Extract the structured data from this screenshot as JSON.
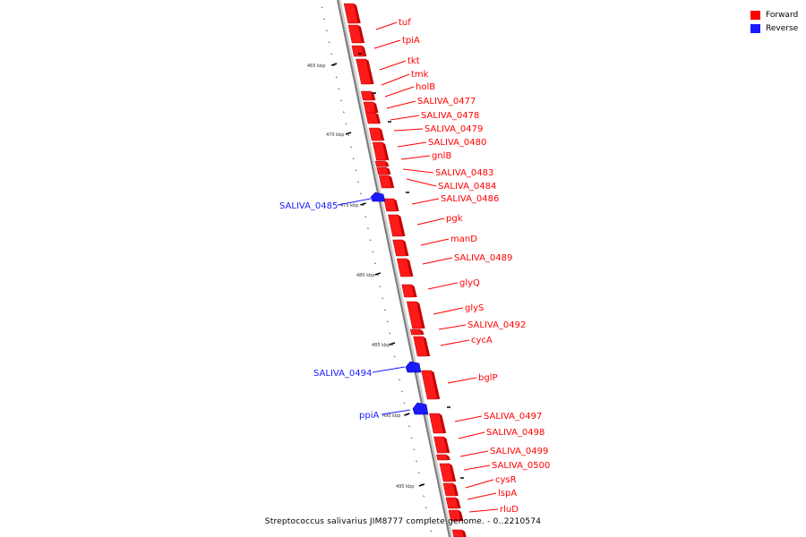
{
  "legend": {
    "forward_label": "Forward",
    "reverse_label": "Reverse",
    "forward_color": "#ff0000",
    "reverse_color": "#1a1aff"
  },
  "caption": "Streptococcus salivarius JIM8777 complete genome. - 0..2210574",
  "backbone_ticks": [
    "465 kbp",
    "470 kbp",
    "475 kbp",
    "480 kbp",
    "485 kbp",
    "490 kbp",
    "495 kbp"
  ],
  "genes_forward": [
    "tuf",
    "tpiA",
    "tkt",
    "tmk",
    "holB",
    "SALIVA_0477",
    "SALIVA_0478",
    "SALIVA_0479",
    "SALIVA_0480",
    "gnlB",
    "SALIVA_0483",
    "SALIVA_0484",
    "SALIVA_0486",
    "pgk",
    "manD",
    "SALIVA_0489",
    "glyQ",
    "glyS",
    "SALIVA_0492",
    "cycA",
    "bglP",
    "SALIVA_0497",
    "SALIVA_0498",
    "SALIVA_0499",
    "SALIVA_0500",
    "cysR",
    "lspA",
    "rluD"
  ],
  "genes_reverse": [
    "SALIVA_0485",
    "SALIVA_0494",
    "ppiA"
  ]
}
